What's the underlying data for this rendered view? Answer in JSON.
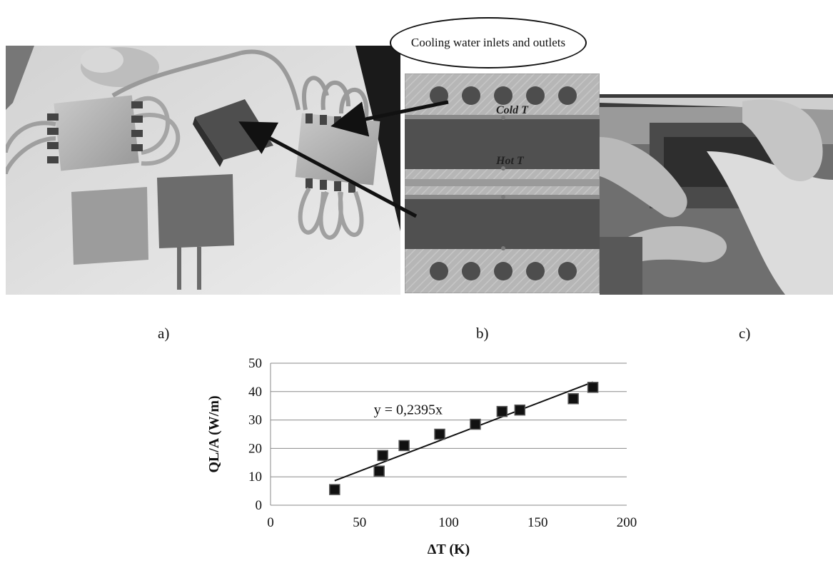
{
  "figure": {
    "callout_text": "Cooling water inlets and outlets",
    "panel_labels": [
      "a)",
      "b)",
      "c)"
    ],
    "section_labels": {
      "cold": "Cold T",
      "hot": "Hot T"
    }
  },
  "chart_data": {
    "type": "scatter",
    "title": "",
    "xlabel": "ΔT (K)",
    "ylabel": "QL/A (W/m)",
    "xlim": [
      0,
      200
    ],
    "ylim": [
      0,
      50
    ],
    "x_ticks": [
      0,
      50,
      100,
      150,
      200
    ],
    "y_ticks": [
      0,
      10,
      20,
      30,
      40,
      50
    ],
    "grid": "horizontal",
    "series": [
      {
        "x": [
          36,
          61,
          63,
          75,
          95,
          115,
          130,
          140,
          170,
          181
        ],
        "y": [
          5.5,
          12,
          17.5,
          21,
          25,
          28.5,
          33,
          33.5,
          37.5,
          41.5
        ]
      }
    ],
    "trendline": {
      "slope": 0.2395,
      "x_range": [
        36,
        181
      ],
      "label": "y = 0,2395x"
    },
    "marker_color": "#111111",
    "line_color": "#111111"
  }
}
